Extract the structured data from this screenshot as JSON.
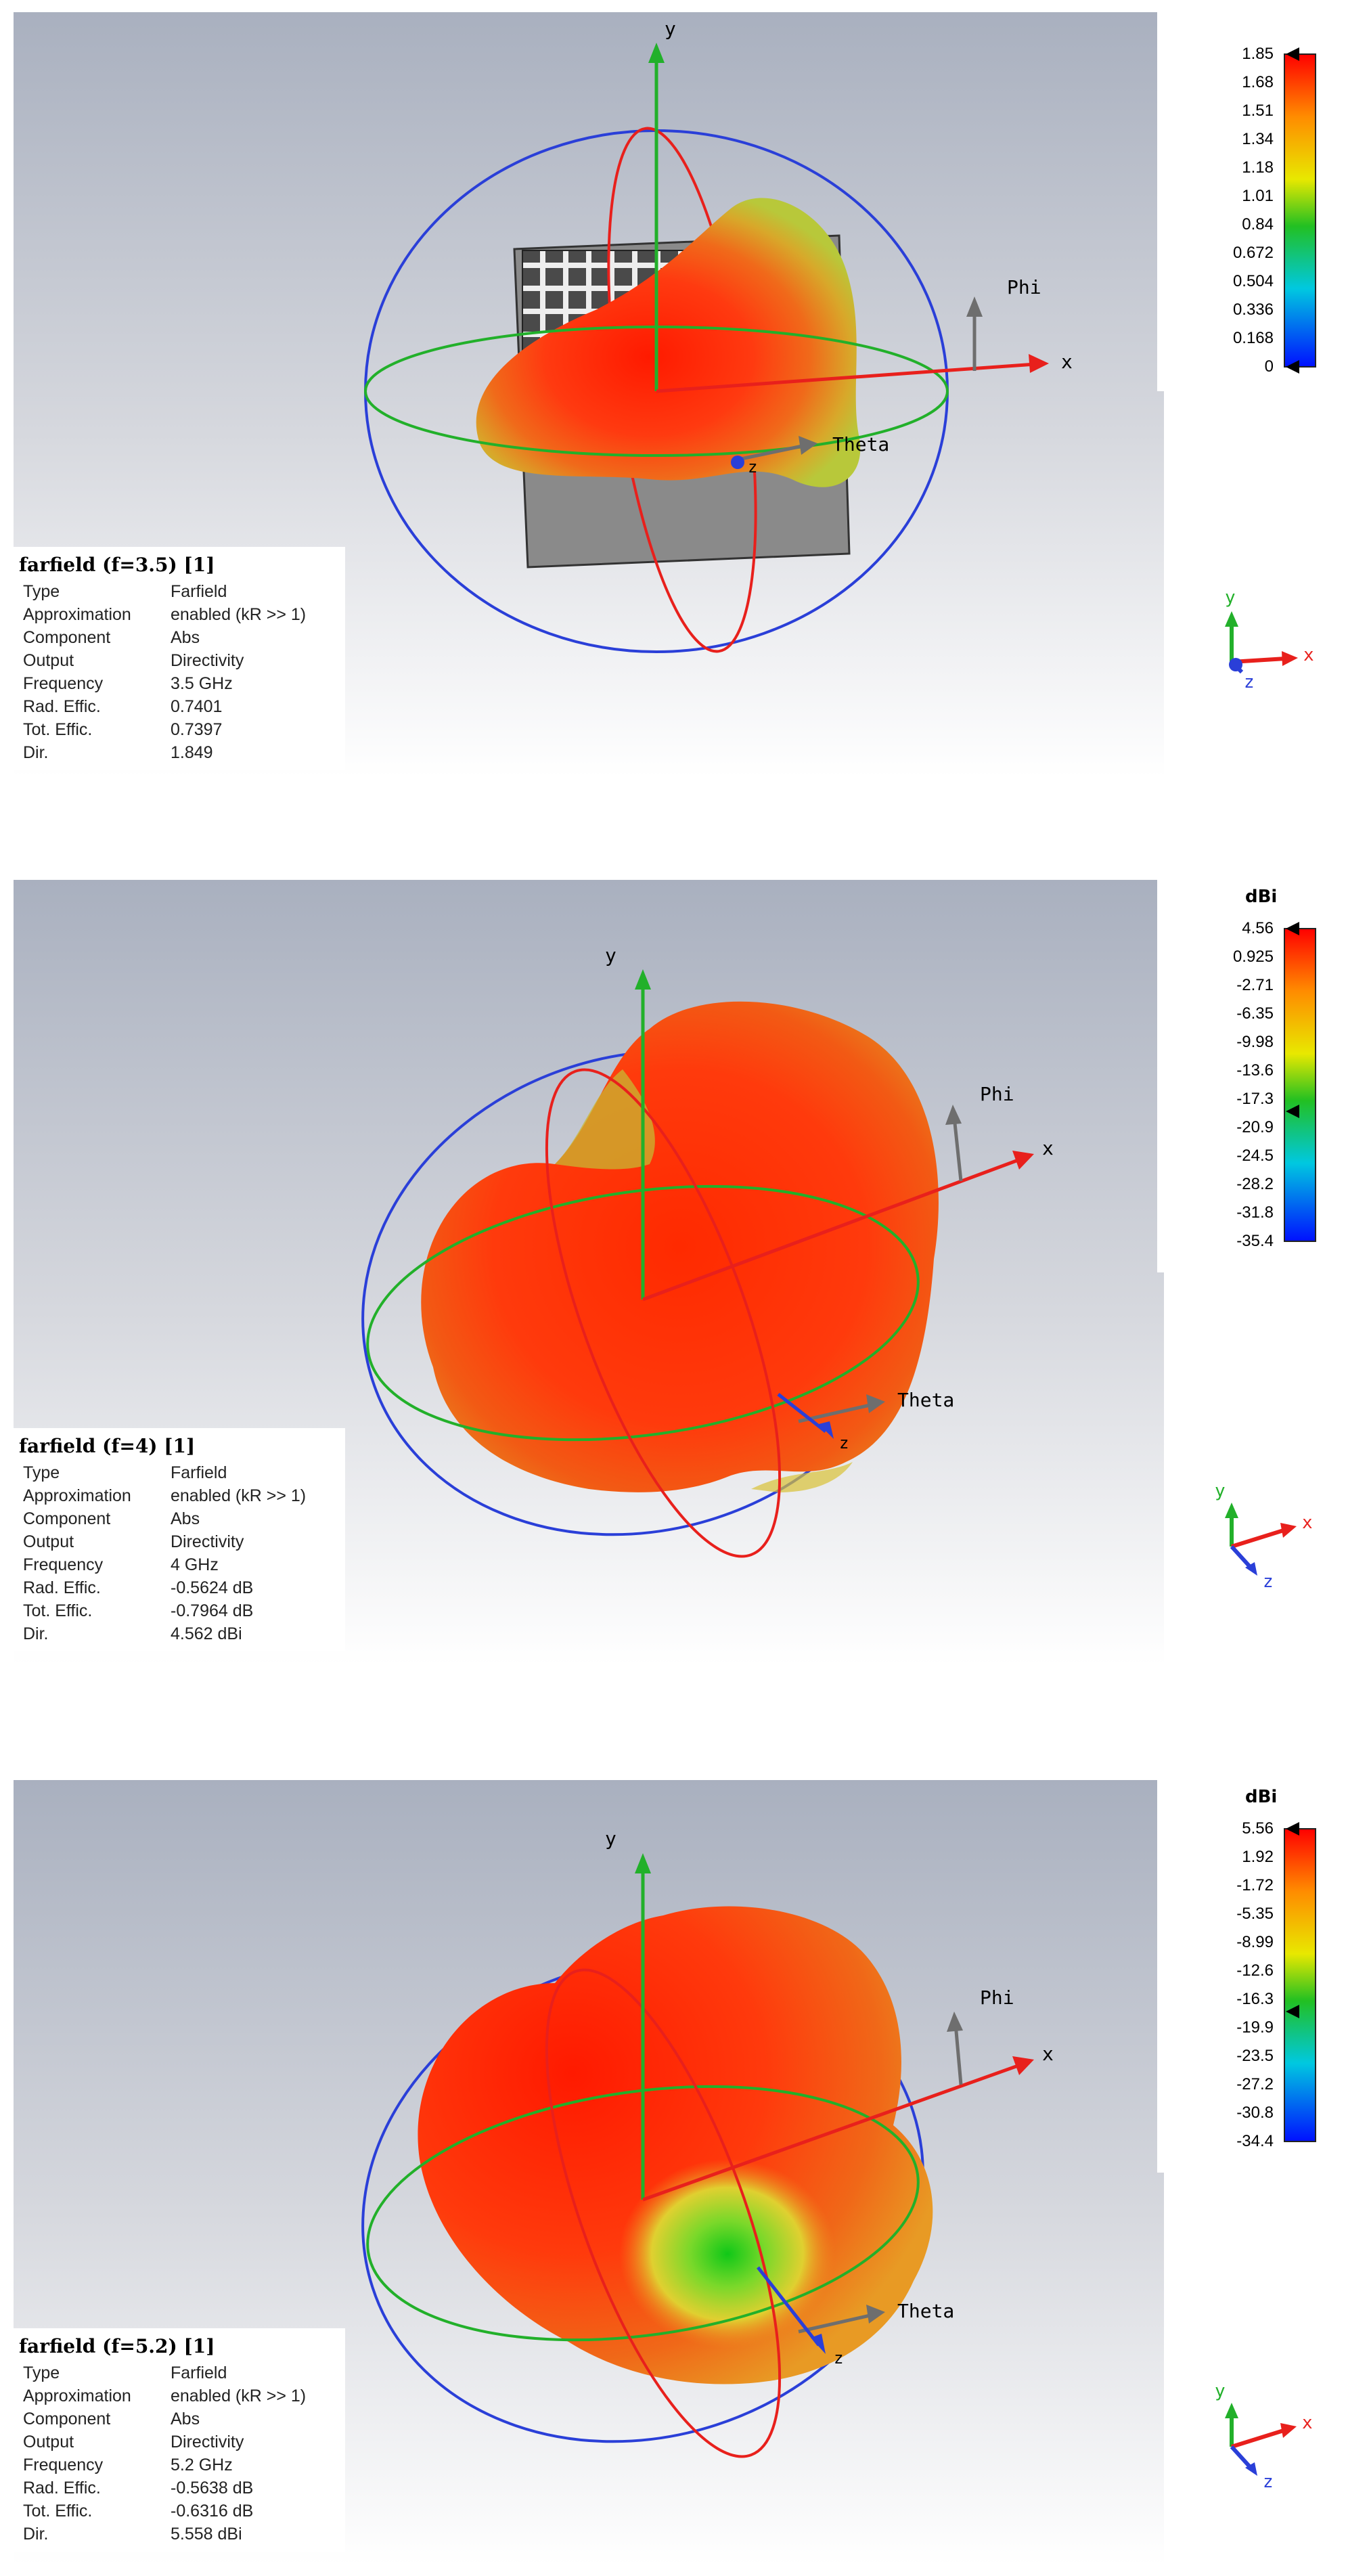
{
  "panels": [
    {
      "info": {
        "title": "farfield (f=3.5) [1]",
        "rows": [
          {
            "key": "Type",
            "value": "Farfield"
          },
          {
            "key": "Approximation",
            "value": "enabled (kR >> 1)"
          },
          {
            "key": "Component",
            "value": "Abs"
          },
          {
            "key": "Output",
            "value": "Directivity"
          },
          {
            "key": "Frequency",
            "value": "3.5 GHz"
          },
          {
            "key": "Rad. Effic.",
            "value": "0.7401"
          },
          {
            "key": "Tot. Effic.",
            "value": "0.7397"
          },
          {
            "key": "Dir.",
            "value": "1.849"
          }
        ]
      },
      "legend": {
        "unit": "",
        "ticks": [
          "1.85",
          "1.68",
          "1.51",
          "1.34",
          "1.18",
          "1.01",
          "0.84",
          "0.672",
          "0.504",
          "0.336",
          "0.168",
          "0"
        ]
      },
      "axes": {
        "x": "x",
        "y": "y",
        "z": "z",
        "phi": "Phi",
        "theta": "Theta"
      },
      "triad": {
        "x": "x",
        "y": "y",
        "z": "z"
      }
    },
    {
      "info": {
        "title": "farfield (f=4) [1]",
        "rows": [
          {
            "key": "Type",
            "value": "Farfield"
          },
          {
            "key": "Approximation",
            "value": "enabled (kR >> 1)"
          },
          {
            "key": "Component",
            "value": "Abs"
          },
          {
            "key": "Output",
            "value": "Directivity"
          },
          {
            "key": "Frequency",
            "value": "4 GHz"
          },
          {
            "key": "Rad. Effic.",
            "value": "-0.5624 dB"
          },
          {
            "key": "Tot. Effic.",
            "value": "-0.7964 dB"
          },
          {
            "key": "Dir.",
            "value": "4.562 dBi"
          }
        ]
      },
      "legend": {
        "unit": "dBi",
        "ticks": [
          "4.56",
          "0.925",
          "-2.71",
          "-6.35",
          "-9.98",
          "-13.6",
          "-17.3",
          "-20.9",
          "-24.5",
          "-28.2",
          "-31.8",
          "-35.4"
        ]
      },
      "axes": {
        "x": "x",
        "y": "y",
        "z": "z",
        "phi": "Phi",
        "theta": "Theta"
      },
      "triad": {
        "x": "x",
        "y": "y",
        "z": "z"
      }
    },
    {
      "info": {
        "title": "farfield (f=5.2) [1]",
        "rows": [
          {
            "key": "Type",
            "value": "Farfield"
          },
          {
            "key": "Approximation",
            "value": "enabled (kR >> 1)"
          },
          {
            "key": "Component",
            "value": "Abs"
          },
          {
            "key": "Output",
            "value": "Directivity"
          },
          {
            "key": "Frequency",
            "value": "5.2 GHz"
          },
          {
            "key": "Rad. Effic.",
            "value": "-0.5638 dB"
          },
          {
            "key": "Tot. Effic.",
            "value": "-0.6316 dB"
          },
          {
            "key": "Dir.",
            "value": "5.558 dBi"
          }
        ]
      },
      "legend": {
        "unit": "dBi",
        "ticks": [
          "5.56",
          "1.92",
          "-1.72",
          "-5.35",
          "-8.99",
          "-12.6",
          "-16.3",
          "-19.9",
          "-23.5",
          "-27.2",
          "-30.8",
          "-34.4"
        ]
      },
      "axes": {
        "x": "x",
        "y": "y",
        "z": "z",
        "phi": "Phi",
        "theta": "Theta"
      },
      "triad": {
        "x": "x",
        "y": "y",
        "z": "z"
      }
    }
  ],
  "colors": {
    "x_axis": "#e8201c",
    "y_axis": "#22b02a",
    "z_axis": "#2a3fd8",
    "auxiliary_axis": "#6e6e6e",
    "pattern_max": "#ff2a00",
    "pattern_min": "#2040ff"
  }
}
